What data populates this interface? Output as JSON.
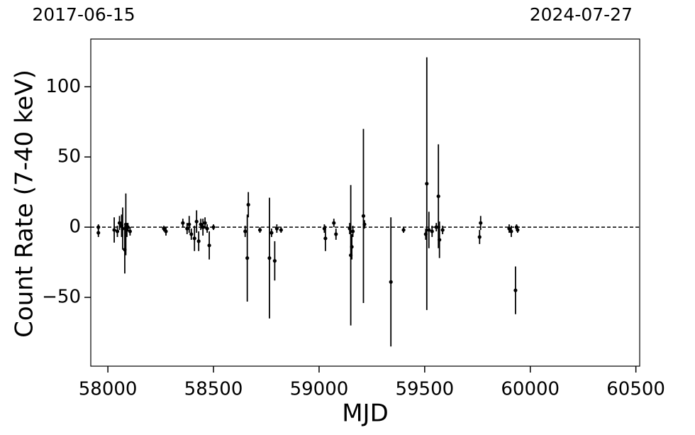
{
  "chart_data": {
    "type": "errorbar",
    "xlabel": "MJD",
    "ylabel": "Count Rate (7-40 keV)",
    "xlim": [
      57919,
      60518
    ],
    "ylim": [
      -99,
      134
    ],
    "xticks": [
      58000,
      58500,
      59000,
      59500,
      60000,
      60500
    ],
    "yticks": [
      {
        "value": -50,
        "label": "−50"
      },
      0,
      50,
      100
    ],
    "x2ticks": [
      {
        "value": 57919,
        "label": "2017-06-15"
      },
      {
        "value": 60518,
        "label": "2024-07-27"
      }
    ],
    "hline": 0,
    "color": "#000000",
    "x": [
      57955,
      57955,
      58030,
      58045,
      58055,
      58065,
      58070,
      58080,
      58085,
      58090,
      58095,
      58105,
      58265,
      58275,
      58355,
      58375,
      58385,
      58395,
      58410,
      58420,
      58430,
      58440,
      58450,
      58460,
      58470,
      58480,
      58500,
      58650,
      58660,
      58665,
      58720,
      58765,
      58775,
      58790,
      58800,
      58820,
      59025,
      59030,
      59070,
      59080,
      59145,
      59150,
      59155,
      59160,
      59210,
      59215,
      59340,
      59400,
      59505,
      59510,
      59520,
      59535,
      59555,
      59565,
      59570,
      59585,
      59760,
      59765,
      59900,
      59910,
      59930,
      59935,
      59940
    ],
    "values": [
      0,
      -4,
      -2,
      -3,
      3,
      1,
      -1,
      -16,
      2,
      -2,
      0,
      -3,
      -1,
      -3,
      3,
      -1,
      2,
      -5,
      -8,
      4,
      -10,
      2,
      0,
      3,
      -1,
      -13,
      0,
      -3,
      -22,
      16,
      -2,
      -22,
      -4,
      -24,
      -1,
      -2,
      -1,
      -8,
      3,
      -5,
      -1,
      -20,
      -14,
      -3,
      8,
      2,
      -39,
      -2,
      -5,
      31,
      -2,
      -3,
      0,
      22,
      -9,
      -2,
      -7,
      3,
      -1,
      -3,
      -45,
      0,
      -2
    ],
    "errors": [
      2,
      3,
      9,
      4,
      5,
      8,
      15,
      17,
      22,
      5,
      3,
      3,
      2,
      3,
      3,
      4,
      6,
      4,
      9,
      8,
      7,
      4,
      6,
      4,
      3,
      10,
      2,
      4,
      31,
      9,
      2,
      43,
      3,
      14,
      3,
      2,
      3,
      9,
      3,
      4,
      4,
      50,
      9,
      4,
      62,
      3,
      46,
      2,
      4,
      90,
      13,
      4,
      3,
      37,
      13,
      3,
      5,
      5,
      3,
      4,
      17,
      2,
      2
    ]
  }
}
